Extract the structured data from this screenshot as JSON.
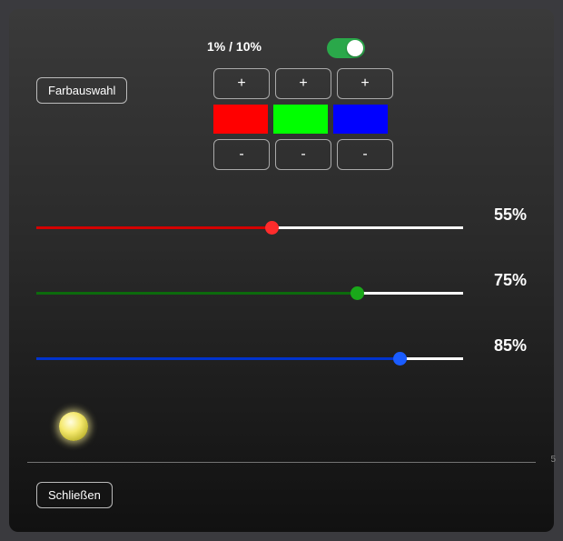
{
  "step_label": "1% / 10%",
  "toggle": {
    "on": true,
    "on_color": "#2aa84a",
    "knob_color": "#ffffff"
  },
  "color_select_label": "Farbauswahl",
  "stepper": {
    "plus_label": "+",
    "minus_label": "-",
    "swatch_colors": [
      "#ff0000",
      "#00ff00",
      "#0000ff"
    ]
  },
  "sliders": [
    {
      "color": "#d40000",
      "thumb_color": "#ff2c2c",
      "value": 55,
      "pct_label": "55%"
    },
    {
      "color": "#0c6b0c",
      "thumb_color": "#1aa81a",
      "value": 75,
      "pct_label": "75%"
    },
    {
      "color": "#0033cc",
      "thumb_color": "#1a5cff",
      "value": 85,
      "pct_label": "85%"
    }
  ],
  "close_label": "Schließen",
  "axis_tick": "5"
}
